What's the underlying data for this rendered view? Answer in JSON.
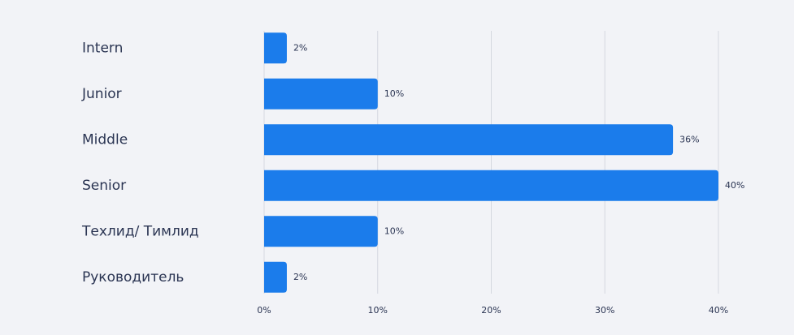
{
  "chart_data": {
    "type": "bar",
    "orientation": "horizontal",
    "categories": [
      "Intern",
      "Junior",
      "Middle",
      "Senior",
      "Техлид/ Тимлид",
      "Руководитель"
    ],
    "values": [
      2,
      10,
      36,
      40,
      10,
      2
    ],
    "value_labels": [
      "2%",
      "10%",
      "36%",
      "40%",
      "10%",
      "2%"
    ],
    "color": "#1b7ceb",
    "xlim": [
      0,
      40
    ],
    "xticks": [
      {
        "value": 0,
        "label": "0%"
      },
      {
        "value": 10,
        "label": "10%"
      },
      {
        "value": 20,
        "label": "20%"
      },
      {
        "value": 30,
        "label": "30%"
      },
      {
        "value": 40,
        "label": "40%"
      }
    ],
    "grid": true
  }
}
